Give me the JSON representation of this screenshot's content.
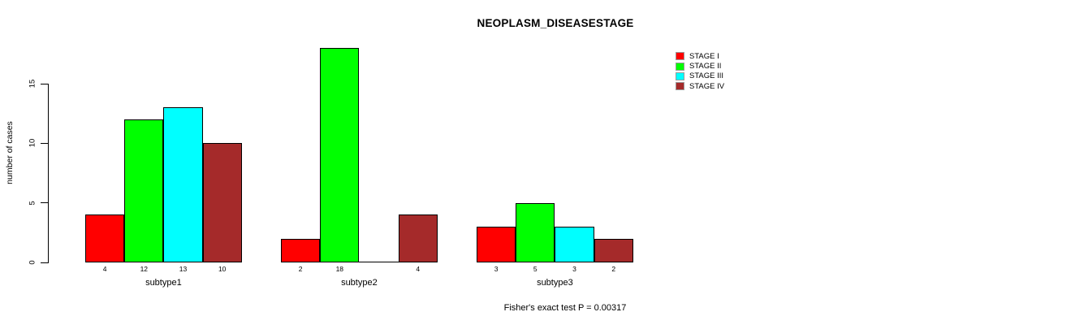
{
  "chart_data": {
    "type": "bar",
    "title": "NEOPLASM_DISEASESTAGE",
    "ylabel": "number of cases",
    "yticks": [
      0,
      5,
      10,
      15
    ],
    "ylim": [
      0,
      18
    ],
    "grid": false,
    "legend_position": "top-right",
    "categories": [
      "subtype1",
      "subtype2",
      "subtype3"
    ],
    "series": [
      {
        "name": "STAGE I",
        "color": "#ff0000",
        "values": [
          4,
          2,
          3
        ]
      },
      {
        "name": "STAGE II",
        "color": "#00ff00",
        "values": [
          12,
          18,
          5
        ]
      },
      {
        "name": "STAGE III",
        "color": "#00ffff",
        "values": [
          13,
          0,
          3
        ]
      },
      {
        "name": "STAGE IV",
        "color": "#a52a2a",
        "values": [
          10,
          4,
          2
        ]
      }
    ],
    "bar_value_labels_shown": true,
    "zero_bars_unlabeled": true,
    "footnote": "Fisher's exact test P = 0.00317"
  }
}
